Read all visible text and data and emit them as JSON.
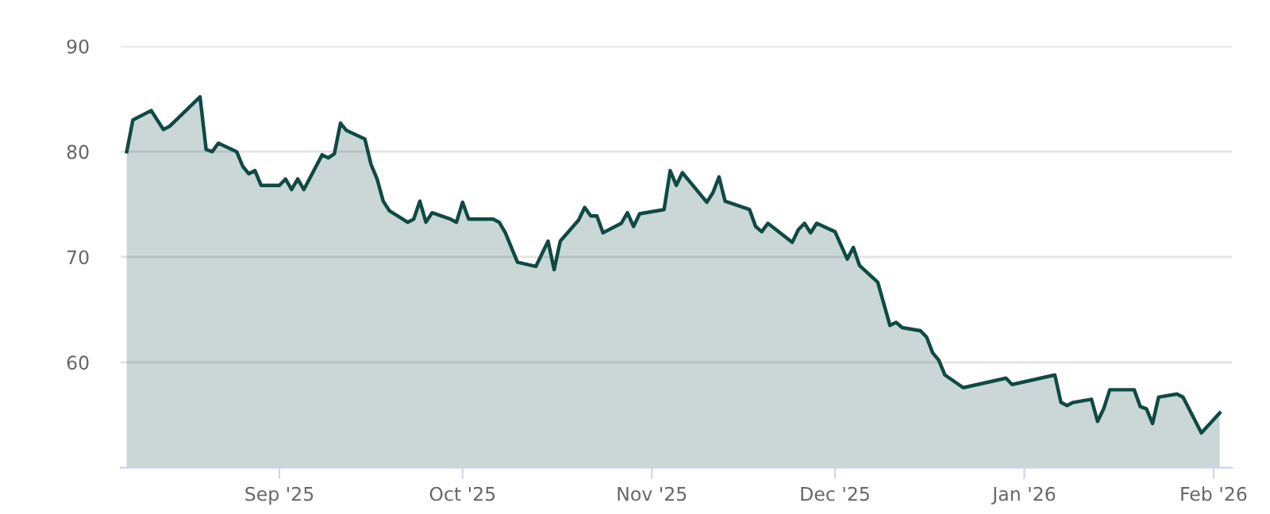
{
  "chart_data": {
    "type": "area",
    "x": [
      "2025-08-07",
      "2025-08-08",
      "2025-08-11",
      "2025-08-13",
      "2025-08-14",
      "2025-08-19",
      "2025-08-20",
      "2025-08-21",
      "2025-08-22",
      "2025-08-25",
      "2025-08-26",
      "2025-08-27",
      "2025-08-28",
      "2025-08-29",
      "2025-09-01",
      "2025-09-02",
      "2025-09-03",
      "2025-09-04",
      "2025-09-05",
      "2025-09-08",
      "2025-09-09",
      "2025-09-10",
      "2025-09-11",
      "2025-09-12",
      "2025-09-15",
      "2025-09-16",
      "2025-09-17",
      "2025-09-18",
      "2025-09-19",
      "2025-09-22",
      "2025-09-23",
      "2025-09-24",
      "2025-09-25",
      "2025-09-26",
      "2025-09-29",
      "2025-09-30",
      "2025-10-01",
      "2025-10-02",
      "2025-10-06",
      "2025-10-07",
      "2025-10-08",
      "2025-10-10",
      "2025-10-13",
      "2025-10-15",
      "2025-10-16",
      "2025-10-17",
      "2025-10-20",
      "2025-10-21",
      "2025-10-22",
      "2025-10-23",
      "2025-10-24",
      "2025-10-27",
      "2025-10-28",
      "2025-10-29",
      "2025-10-30",
      "2025-11-03",
      "2025-11-04",
      "2025-11-05",
      "2025-11-06",
      "2025-11-10",
      "2025-11-11",
      "2025-11-12",
      "2025-11-13",
      "2025-11-17",
      "2025-11-18",
      "2025-11-19",
      "2025-11-20",
      "2025-11-24",
      "2025-11-25",
      "2025-11-26",
      "2025-11-27",
      "2025-11-28",
      "2025-12-01",
      "2025-12-03",
      "2025-12-04",
      "2025-12-05",
      "2025-12-08",
      "2025-12-10",
      "2025-12-11",
      "2025-12-12",
      "2025-12-15",
      "2025-12-16",
      "2025-12-17",
      "2025-12-18",
      "2025-12-19",
      "2025-12-22",
      "2025-12-29",
      "2025-12-30",
      "2026-01-06",
      "2026-01-07",
      "2026-01-08",
      "2026-01-09",
      "2026-01-12",
      "2026-01-13",
      "2026-01-14",
      "2026-01-15",
      "2026-01-19",
      "2026-01-20",
      "2026-01-21",
      "2026-01-22",
      "2026-01-23",
      "2026-01-26",
      "2026-01-27",
      "2026-01-30",
      "2026-02-02"
    ],
    "series": [
      {
        "color": "#0f4a45",
        "values": [
          80.0,
          83.0,
          83.9,
          82.1,
          82.4,
          85.2,
          80.2,
          80.0,
          80.8,
          80.0,
          78.6,
          77.9,
          78.2,
          76.8,
          76.8,
          77.4,
          76.4,
          77.4,
          76.4,
          79.7,
          79.4,
          79.8,
          82.7,
          82.0,
          81.2,
          78.8,
          77.4,
          75.3,
          74.4,
          73.3,
          73.6,
          75.3,
          73.3,
          74.2,
          73.6,
          73.3,
          75.2,
          73.6,
          73.6,
          73.3,
          72.3,
          69.5,
          69.1,
          71.5,
          68.8,
          71.5,
          73.5,
          74.7,
          73.9,
          73.9,
          72.3,
          73.2,
          74.2,
          72.9,
          74.1,
          74.5,
          78.2,
          76.8,
          78.0,
          75.2,
          76.1,
          77.6,
          75.3,
          74.5,
          72.9,
          72.4,
          73.2,
          71.4,
          72.6,
          73.2,
          72.3,
          73.2,
          72.4,
          69.8,
          70.9,
          69.2,
          67.6,
          63.5,
          63.8,
          63.3,
          63.0,
          62.4,
          60.9,
          60.2,
          58.8,
          57.6,
          58.5,
          57.9,
          58.8,
          56.2,
          55.9,
          56.2,
          56.5,
          54.4,
          55.6,
          57.4,
          57.4,
          55.8,
          55.6,
          54.2,
          56.7,
          57.0,
          56.7,
          53.3,
          55.2
        ]
      }
    ],
    "xlim": [
      "2025-08-06",
      "2026-02-04"
    ],
    "xticks": [
      {
        "value": "2025-09-01",
        "label": "Sep '25"
      },
      {
        "value": "2025-10-01",
        "label": "Oct '25"
      },
      {
        "value": "2025-11-01",
        "label": "Nov '25"
      },
      {
        "value": "2025-12-01",
        "label": "Dec '25"
      },
      {
        "value": "2026-01-01",
        "label": "Jan '26"
      },
      {
        "value": "2026-02-01",
        "label": "Feb '26"
      }
    ],
    "ylim": [
      50,
      90
    ],
    "yticks": [
      60,
      70,
      80,
      90
    ],
    "grid": "y",
    "legend": false
  }
}
